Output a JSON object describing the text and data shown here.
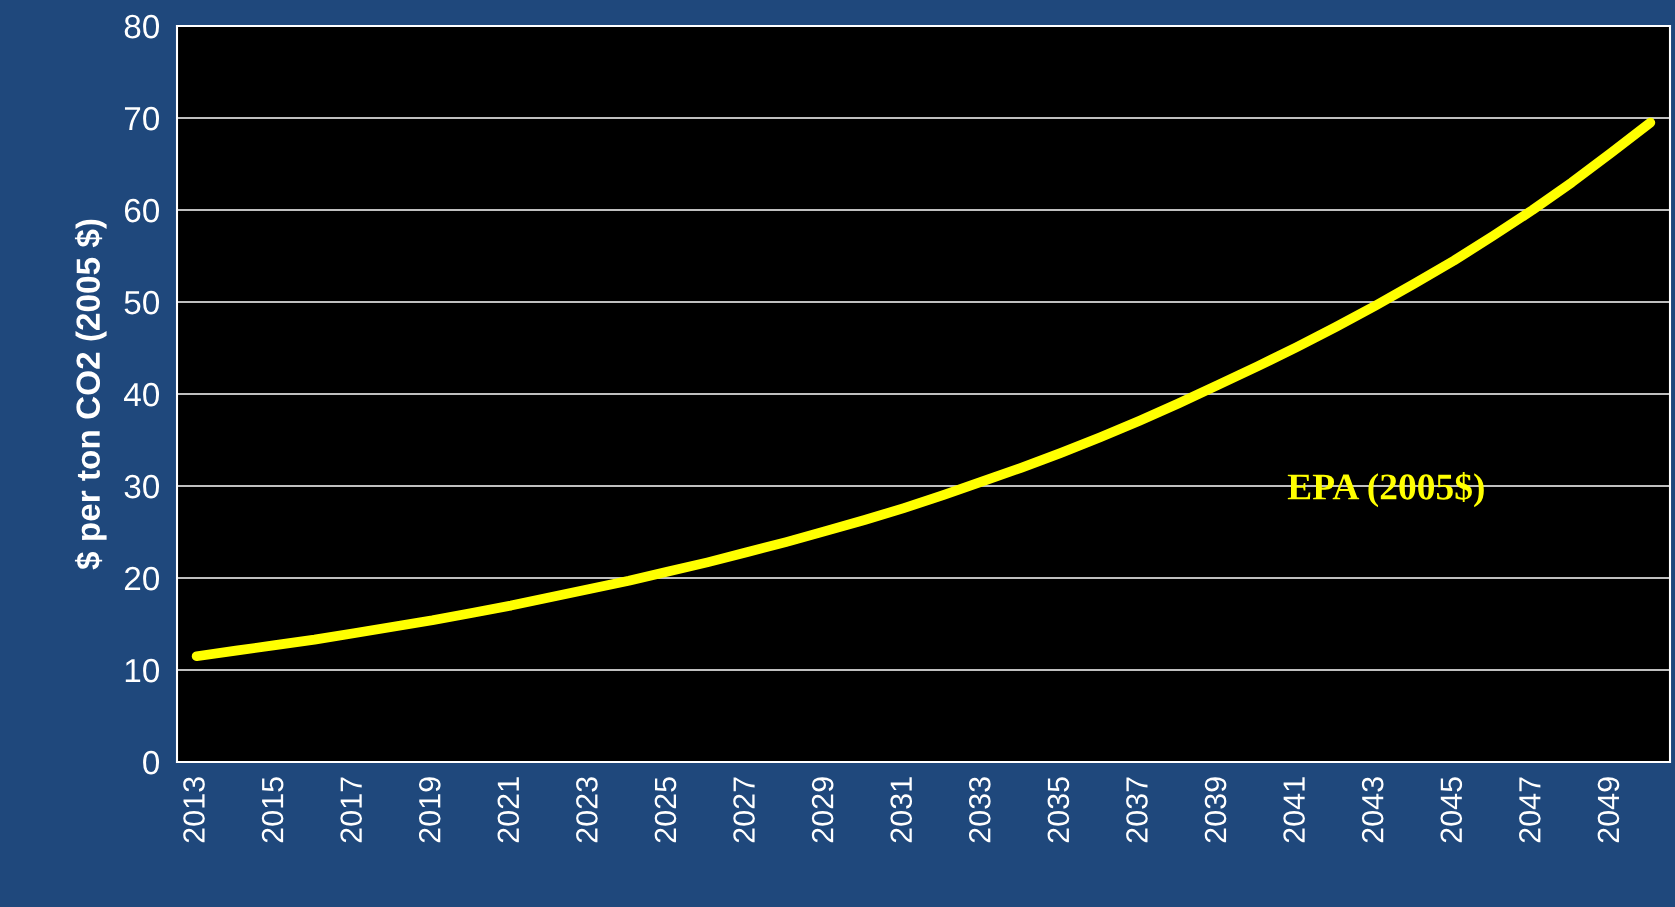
{
  "chart_data": {
    "type": "line",
    "ylabel": "$ per ton CO2 (2005 $)",
    "categories": [
      "2013",
      null,
      "2015",
      null,
      "2017",
      null,
      "2019",
      null,
      "2021",
      null,
      "2023",
      null,
      "2025",
      null,
      "2027",
      null,
      "2029",
      null,
      "2031",
      null,
      "2033",
      null,
      "2035",
      null,
      "2037",
      null,
      "2039",
      null,
      "2041",
      null,
      "2043",
      null,
      "2045",
      null,
      "2047",
      null,
      "2049",
      null
    ],
    "series": [
      {
        "name": "EPA (2005$)",
        "color": "#ffff00",
        "values": [
          11.5,
          12.1,
          12.7,
          13.3,
          14.0,
          14.7,
          15.4,
          16.2,
          17.0,
          17.9,
          18.8,
          19.7,
          20.7,
          21.7,
          22.8,
          23.9,
          25.1,
          26.3,
          27.6,
          29.0,
          30.5,
          32.0,
          33.6,
          35.3,
          37.1,
          39.0,
          41.0,
          43.0,
          45.1,
          47.3,
          49.6,
          52.0,
          54.5,
          57.2,
          60.0,
          63.0,
          66.2,
          69.5
        ]
      }
    ],
    "ylim": [
      0,
      80
    ],
    "yticks": [
      0,
      10,
      20,
      30,
      40,
      50,
      60,
      70,
      80
    ],
    "grid": "y",
    "legend": false,
    "marker": "none",
    "line_style": "solid"
  }
}
